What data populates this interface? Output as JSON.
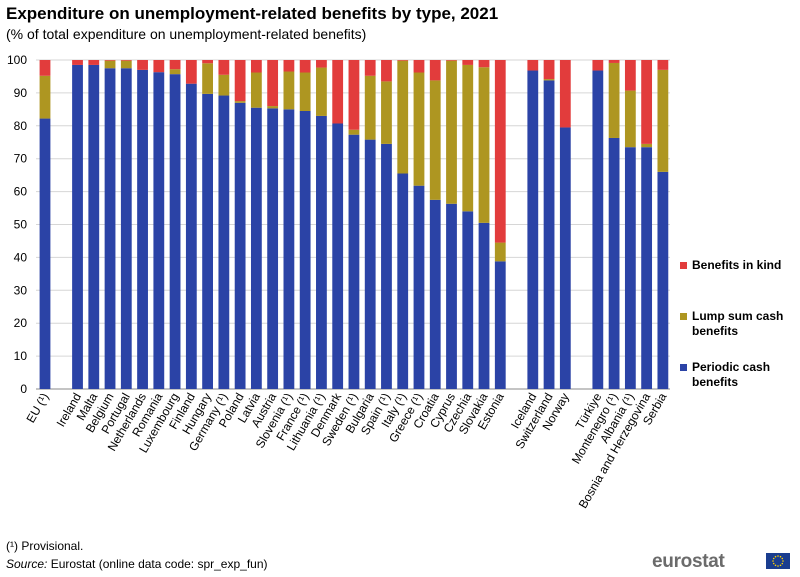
{
  "title": "Expenditure on unemployment-related benefits by type, 2021",
  "subtitle": "(% of total expenditure on unemployment-related benefits)",
  "footnote": "(¹) Provisional.",
  "source": {
    "label": "Source:",
    "text": "Eurostat (online data code: spr_exp_fun)"
  },
  "logo": "eurostat",
  "colors": {
    "periodic": "#2b43a6",
    "lump": "#ae9621",
    "kind": "#e23c3c",
    "grid": "#d6d6d6",
    "axis": "#888888"
  },
  "chart_data": {
    "type": "bar",
    "stacked": true,
    "ylim": [
      0,
      100
    ],
    "yticks": [
      0,
      10,
      20,
      30,
      40,
      50,
      60,
      70,
      80,
      90,
      100
    ],
    "grid": true,
    "legend_position": "right",
    "categories": [
      "EU (¹)",
      "Ireland",
      "Malta",
      "Belgium",
      "Portugal",
      "Netherlands",
      "Romania",
      "Luxembourg",
      "Finland",
      "Hungary",
      "Germany (¹)",
      "Poland",
      "Latvia",
      "Austria",
      "Slovenia (¹)",
      "France (¹)",
      "Lithuania (¹)",
      "Denmark",
      "Sweden (¹)",
      "Bulgaria",
      "Spain (¹)",
      "Italy (¹)",
      "Greece (¹)",
      "Croatia",
      "Cyprus",
      "Czechia",
      "Slovakia",
      "Estonia",
      "Iceland",
      "Switzerland",
      "Norway",
      "Türkiye",
      "Montenegro (¹)",
      "Albania (¹)",
      "Bosnia and Herzegovina",
      "Serbia"
    ],
    "groups": [
      1,
      27,
      3,
      5
    ],
    "series": [
      {
        "name": "Periodic cash benefits",
        "color": "#2b43a6",
        "values": [
          82.2,
          98.5,
          98.5,
          97.5,
          97.5,
          97.0,
          96.3,
          95.7,
          92.8,
          89.7,
          89.2,
          87.0,
          85.5,
          85.3,
          85.0,
          84.5,
          83.0,
          80.7,
          77.3,
          75.8,
          74.5,
          65.5,
          61.8,
          57.5,
          56.3,
          54.0,
          50.5,
          38.8,
          96.8,
          93.8,
          79.5,
          96.8,
          76.3,
          73.5,
          73.5,
          66.0
        ]
      },
      {
        "name": "Lump sum cash benefits",
        "color": "#ae9621",
        "values": [
          13.0,
          0.0,
          0.0,
          2.3,
          2.3,
          0.0,
          0.0,
          1.5,
          0.0,
          9.3,
          6.3,
          0.5,
          10.7,
          0.7,
          11.5,
          11.7,
          14.7,
          0.0,
          1.5,
          19.4,
          19.0,
          34.3,
          34.4,
          36.3,
          43.5,
          44.5,
          47.3,
          5.7,
          0.0,
          0.4,
          0.0,
          0.0,
          22.8,
          17.2,
          1.0,
          31.0
        ]
      },
      {
        "name": "Benefits in kind",
        "color": "#e23c3c",
        "values": [
          4.8,
          1.5,
          1.5,
          0.2,
          0.2,
          3.0,
          3.7,
          2.8,
          7.2,
          1.0,
          4.5,
          12.5,
          3.8,
          14.0,
          3.5,
          3.8,
          2.3,
          19.3,
          21.2,
          4.8,
          6.5,
          0.2,
          3.8,
          6.2,
          0.2,
          1.5,
          2.2,
          55.5,
          3.2,
          5.8,
          20.5,
          3.2,
          0.9,
          9.3,
          25.5,
          3.0
        ]
      }
    ],
    "legend": [
      "Benefits in kind",
      "Lump sum cash benefits",
      "Periodic cash benefits"
    ]
  }
}
